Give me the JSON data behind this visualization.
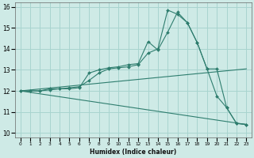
{
  "xlabel": "Humidex (Indice chaleur)",
  "background_color": "#ceeae6",
  "grid_color": "#a8d4cf",
  "line_color": "#2e7d6e",
  "xlim": [
    -0.5,
    23.5
  ],
  "ylim": [
    9.8,
    16.2
  ],
  "yticks": [
    10,
    11,
    12,
    13,
    14,
    15,
    16
  ],
  "lines": [
    {
      "x": [
        0,
        1,
        2,
        3,
        4,
        5,
        6,
        7,
        8,
        9,
        10,
        11,
        12,
        13,
        14,
        15,
        16,
        17,
        18,
        19,
        20,
        21,
        22,
        23
      ],
      "y": [
        12,
        12,
        12,
        12.1,
        12.1,
        12.15,
        12.2,
        12.5,
        12.85,
        13.05,
        13.1,
        13.15,
        13.25,
        13.8,
        14.0,
        15.85,
        15.65,
        15.25,
        14.3,
        13.05,
        11.75,
        11.2,
        10.45,
        10.4
      ],
      "marker": true
    },
    {
      "x": [
        0,
        1,
        2,
        3,
        4,
        5,
        6,
        7,
        8,
        9,
        10,
        11,
        12,
        13,
        14,
        15,
        16,
        17,
        18,
        19,
        20,
        21,
        22,
        23
      ],
      "y": [
        12,
        12,
        12,
        12.05,
        12.1,
        12.1,
        12.15,
        12.85,
        13.0,
        13.1,
        13.15,
        13.25,
        13.3,
        14.35,
        13.95,
        14.8,
        15.75,
        15.25,
        14.3,
        13.05,
        13.05,
        11.2,
        10.45,
        10.4
      ],
      "marker": true
    },
    {
      "x": [
        0,
        23
      ],
      "y": [
        12,
        13.05
      ],
      "marker": false
    },
    {
      "x": [
        0,
        23
      ],
      "y": [
        12,
        10.4
      ],
      "marker": false
    }
  ]
}
